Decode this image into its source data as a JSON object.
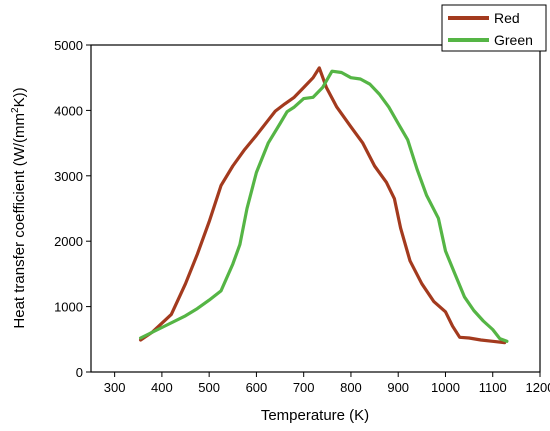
{
  "chart_data": {
    "type": "line",
    "xlabel": "Temperature (K)",
    "ylabel_main": "Heat transfer coefficient (W/(mm",
    "ylabel_sup": "2",
    "ylabel_end": "K))",
    "xlim": [
      250,
      1200
    ],
    "ylim": [
      0,
      5000
    ],
    "x_ticks": [
      300,
      400,
      500,
      600,
      700,
      800,
      900,
      1000,
      1100,
      1200
    ],
    "y_ticks": [
      0,
      1000,
      2000,
      3000,
      4000,
      5000
    ],
    "legend_position": "top-right",
    "series": [
      {
        "name": "Red",
        "color": "#a33a1e",
        "points": [
          [
            355,
            490
          ],
          [
            380,
            610
          ],
          [
            420,
            880
          ],
          [
            450,
            1350
          ],
          [
            475,
            1800
          ],
          [
            500,
            2300
          ],
          [
            525,
            2850
          ],
          [
            550,
            3150
          ],
          [
            575,
            3400
          ],
          [
            600,
            3620
          ],
          [
            625,
            3850
          ],
          [
            640,
            3990
          ],
          [
            660,
            4100
          ],
          [
            680,
            4200
          ],
          [
            700,
            4350
          ],
          [
            720,
            4500
          ],
          [
            733,
            4650
          ],
          [
            748,
            4350
          ],
          [
            770,
            4050
          ],
          [
            800,
            3750
          ],
          [
            825,
            3500
          ],
          [
            850,
            3150
          ],
          [
            875,
            2900
          ],
          [
            892,
            2650
          ],
          [
            905,
            2200
          ],
          [
            925,
            1700
          ],
          [
            950,
            1350
          ],
          [
            975,
            1080
          ],
          [
            1000,
            920
          ],
          [
            1015,
            700
          ],
          [
            1030,
            530
          ],
          [
            1050,
            520
          ],
          [
            1075,
            490
          ],
          [
            1100,
            470
          ],
          [
            1125,
            450
          ]
        ]
      },
      {
        "name": "Green",
        "color": "#55b545",
        "points": [
          [
            355,
            520
          ],
          [
            400,
            680
          ],
          [
            450,
            860
          ],
          [
            475,
            970
          ],
          [
            500,
            1100
          ],
          [
            525,
            1240
          ],
          [
            550,
            1650
          ],
          [
            565,
            1950
          ],
          [
            580,
            2500
          ],
          [
            600,
            3050
          ],
          [
            625,
            3500
          ],
          [
            650,
            3800
          ],
          [
            665,
            3980
          ],
          [
            680,
            4050
          ],
          [
            700,
            4180
          ],
          [
            720,
            4200
          ],
          [
            740,
            4350
          ],
          [
            760,
            4600
          ],
          [
            780,
            4580
          ],
          [
            800,
            4500
          ],
          [
            820,
            4480
          ],
          [
            840,
            4400
          ],
          [
            860,
            4250
          ],
          [
            880,
            4050
          ],
          [
            900,
            3800
          ],
          [
            920,
            3550
          ],
          [
            940,
            3100
          ],
          [
            960,
            2700
          ],
          [
            985,
            2350
          ],
          [
            1000,
            1850
          ],
          [
            1020,
            1500
          ],
          [
            1040,
            1150
          ],
          [
            1060,
            940
          ],
          [
            1080,
            780
          ],
          [
            1100,
            650
          ],
          [
            1115,
            510
          ],
          [
            1130,
            470
          ]
        ]
      }
    ]
  }
}
